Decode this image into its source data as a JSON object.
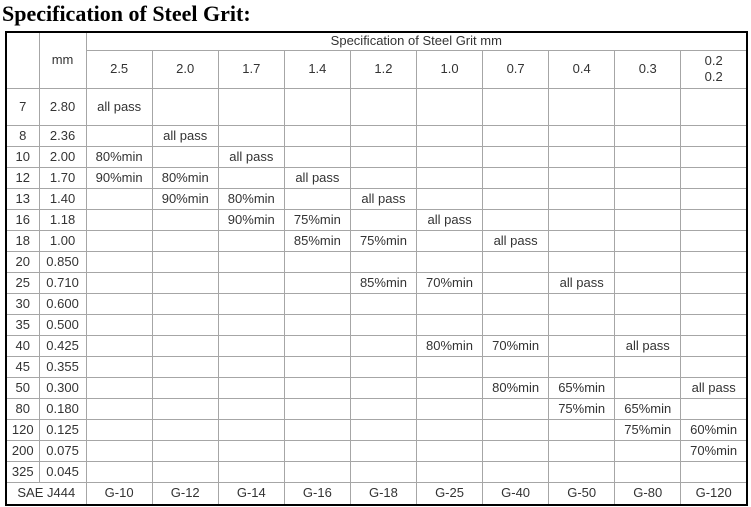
{
  "title": "Specification of Steel Grit:",
  "table": {
    "span_header": "Specification of Steel Grit mm",
    "mm_header": "mm",
    "columns": [
      "2.5",
      "2.0",
      "1.7",
      "1.4",
      "1.2",
      "1.0",
      "0.7",
      "0.4",
      "0.3",
      "0.2\n0.2"
    ],
    "rows": [
      {
        "mesh": "7",
        "mm": "2.80",
        "cells": [
          "all pass",
          "",
          "",
          "",
          "",
          "",
          "",
          "",
          "",
          ""
        ]
      },
      {
        "mesh": "8",
        "mm": "2.36",
        "cells": [
          "",
          "all pass",
          "",
          "",
          "",
          "",
          "",
          "",
          "",
          ""
        ]
      },
      {
        "mesh": "10",
        "mm": "2.00",
        "cells": [
          "80%min",
          "",
          "all pass",
          "",
          "",
          "",
          "",
          "",
          "",
          ""
        ]
      },
      {
        "mesh": "12",
        "mm": "1.70",
        "cells": [
          "90%min",
          "80%min",
          "",
          "all pass",
          "",
          "",
          "",
          "",
          "",
          ""
        ]
      },
      {
        "mesh": "13",
        "mm": "1.40",
        "cells": [
          "",
          "90%min",
          "80%min",
          "",
          "all pass",
          "",
          "",
          "",
          "",
          ""
        ]
      },
      {
        "mesh": "16",
        "mm": "1.18",
        "cells": [
          "",
          "",
          "90%min",
          "75%min",
          "",
          "all pass",
          "",
          "",
          "",
          ""
        ]
      },
      {
        "mesh": "18",
        "mm": "1.00",
        "cells": [
          "",
          "",
          "",
          "85%min",
          "75%min",
          "",
          "all pass",
          "",
          "",
          ""
        ]
      },
      {
        "mesh": "20",
        "mm": "0.850",
        "cells": [
          "",
          "",
          "",
          "",
          "",
          "",
          "",
          "",
          "",
          ""
        ]
      },
      {
        "mesh": "25",
        "mm": "0.710",
        "cells": [
          "",
          "",
          "",
          "",
          "85%min",
          "70%min",
          "",
          "all pass",
          "",
          ""
        ]
      },
      {
        "mesh": "30",
        "mm": "0.600",
        "cells": [
          "",
          "",
          "",
          "",
          "",
          "",
          "",
          "",
          "",
          ""
        ]
      },
      {
        "mesh": "35",
        "mm": "0.500",
        "cells": [
          "",
          "",
          "",
          "",
          "",
          "",
          "",
          "",
          "",
          ""
        ]
      },
      {
        "mesh": "40",
        "mm": "0.425",
        "cells": [
          "",
          "",
          "",
          "",
          "",
          "80%min",
          "70%min",
          "",
          "all pass",
          ""
        ]
      },
      {
        "mesh": "45",
        "mm": "0.355",
        "cells": [
          "",
          "",
          "",
          "",
          "",
          "",
          "",
          "",
          "",
          ""
        ]
      },
      {
        "mesh": "50",
        "mm": "0.300",
        "cells": [
          "",
          "",
          "",
          "",
          "",
          "",
          "80%min",
          "65%min",
          "",
          "all pass"
        ]
      },
      {
        "mesh": "80",
        "mm": "0.180",
        "cells": [
          "",
          "",
          "",
          "",
          "",
          "",
          "",
          "75%min",
          "65%min",
          ""
        ]
      },
      {
        "mesh": "120",
        "mm": "0.125",
        "cells": [
          "",
          "",
          "",
          "",
          "",
          "",
          "",
          "",
          "75%min",
          "60%min"
        ]
      },
      {
        "mesh": "200",
        "mm": "0.075",
        "cells": [
          "",
          "",
          "",
          "",
          "",
          "",
          "",
          "",
          "",
          "70%min"
        ]
      },
      {
        "mesh": "325",
        "mm": "0.045",
        "cells": [
          "",
          "",
          "",
          "",
          "",
          "",
          "",
          "",
          "",
          ""
        ]
      }
    ],
    "footer": {
      "label": "SAE J444",
      "values": [
        "G-10",
        "G-12",
        "G-14",
        "G-16",
        "G-18",
        "G-25",
        "G-40",
        "G-50",
        "G-80",
        "G-120"
      ]
    }
  }
}
